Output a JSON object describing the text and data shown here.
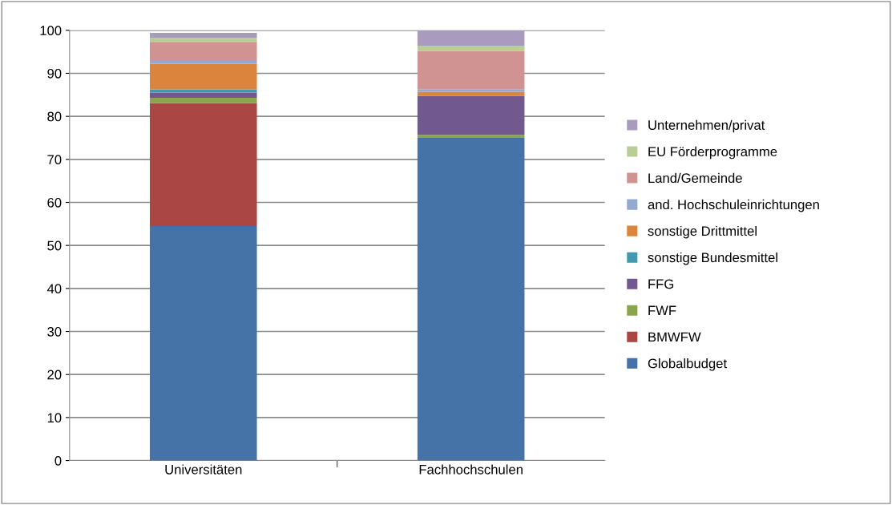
{
  "chart_data": {
    "type": "bar",
    "stacked": true,
    "categories": [
      "Universitäten",
      "Fachhochschulen"
    ],
    "series": [
      {
        "name": "Globalbudget",
        "color": "#4572a7",
        "values": [
          54.5,
          75.0
        ]
      },
      {
        "name": "BMWFW",
        "color": "#aa4643",
        "values": [
          28.6,
          0
        ]
      },
      {
        "name": "FWF",
        "color": "#89a54e",
        "values": [
          1.2,
          0.7
        ]
      },
      {
        "name": "FFG",
        "color": "#71588f",
        "values": [
          1.2,
          9.1
        ]
      },
      {
        "name": "sonstige Bundesmittel",
        "color": "#4198af",
        "values": [
          0.7,
          0
        ]
      },
      {
        "name": "sonstige Drittmittel",
        "color": "#db843d",
        "values": [
          6.0,
          0.9
        ]
      },
      {
        "name": "and. Hochschuleinrichtungen",
        "color": "#93a9cf",
        "values": [
          0.7,
          0.6
        ]
      },
      {
        "name": "Land/Gemeinde",
        "color": "#d19392",
        "values": [
          4.4,
          8.9
        ]
      },
      {
        "name": "EU Förderprogramme",
        "color": "#b9cd96",
        "values": [
          1.0,
          1.2
        ]
      },
      {
        "name": "Unternehmen/privat",
        "color": "#a99bbd",
        "values": [
          1.1,
          3.6
        ]
      }
    ],
    "ylim": [
      0,
      100
    ],
    "yticks": [
      0,
      10,
      20,
      30,
      40,
      50,
      60,
      70,
      80,
      90,
      100
    ],
    "grid": "y",
    "legend": "right"
  }
}
